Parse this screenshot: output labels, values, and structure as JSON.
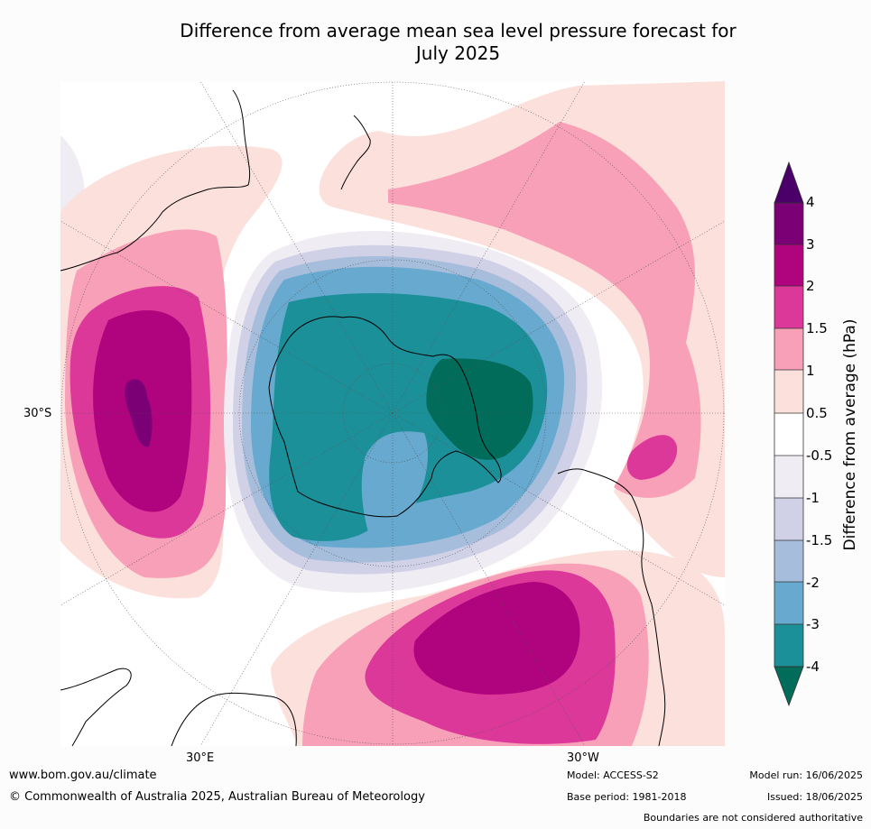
{
  "title_line1": "Difference from average mean sea level pressure forecast for",
  "title_line2": "July 2025",
  "map_labels": {
    "lat": "30°S",
    "lon_left": "30°E",
    "lon_right": "30°W"
  },
  "colorbar": {
    "label": "Difference from average (hPa)",
    "ticks": [
      "4",
      "3",
      "2",
      "1.5",
      "1",
      "0.5",
      "-0.5",
      "-1",
      "-1.5",
      "-2",
      "-3",
      "-4"
    ],
    "colors": {
      "above_4": "#4b0069",
      "3_to_4": "#7b0076",
      "2_to_3": "#b0037e",
      "1.5_to_2": "#dc3899",
      "1_to_1.5": "#f8a0b8",
      "0.5_to_1": "#fce0dc",
      "neutral": "#ffffff",
      "-1_to_-0.5": "#f0ecf3",
      "-1.5_to_-1": "#d0d1e6",
      "-2_to_-1.5": "#a6bddb",
      "-3_to_-2": "#67a9cf",
      "-4_to_-3": "#1c9099",
      "below_-4": "#016c59"
    }
  },
  "footer": {
    "url": "www.bom.gov.au/climate",
    "copyright": "© Commonwealth of Australia 2025, Australian Bureau of Meteorology",
    "model": "Model: ACCESS-S2",
    "base_period": "Base period: 1981-2018",
    "model_run": "Model run: 16/06/2025",
    "issued": "Issued: 18/06/2025",
    "disclaimer": "Boundaries are not considered authoritative"
  }
}
